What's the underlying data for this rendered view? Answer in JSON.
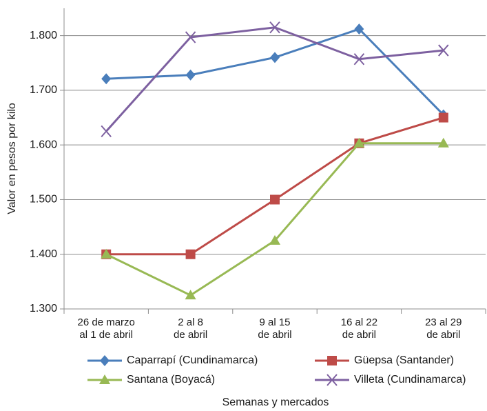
{
  "chart_data": {
    "type": "line",
    "y_label": "Valor en pesos por kilo",
    "x_label": "Semanas y mercados",
    "categories": [
      [
        "26 de marzo",
        "al 1 de abril"
      ],
      [
        "2 al 8",
        "de abril"
      ],
      [
        "9 al 15",
        "de abril"
      ],
      [
        "16 al 22",
        "de abril"
      ],
      [
        "23 al 29",
        "de abril"
      ]
    ],
    "series": [
      {
        "name": "Caparrapí (Cundinamarca)",
        "color": "#4a7ebb",
        "marker": "diamond",
        "values": [
          1721,
          1728,
          1760,
          1812,
          1655
        ]
      },
      {
        "name": "Güepsa (Santander)",
        "color": "#be4b48",
        "marker": "square",
        "values": [
          1400,
          1400,
          1500,
          1603,
          1650
        ]
      },
      {
        "name": "Santana (Boyacá)",
        "color": "#98b954",
        "marker": "triangle",
        "values": [
          1400,
          1325,
          1425,
          1603,
          1603
        ]
      },
      {
        "name": "Villeta (Cundinamarca)",
        "color": "#7d60a0",
        "marker": "x",
        "values": [
          1625,
          1797,
          1815,
          1757,
          1773
        ]
      }
    ],
    "ylim": [
      1300,
      1850
    ],
    "yticks": [
      {
        "value": 1300,
        "label": "1.300"
      },
      {
        "value": 1400,
        "label": "1.400"
      },
      {
        "value": 1500,
        "label": "1.500"
      },
      {
        "value": 1600,
        "label": "1.600"
      },
      {
        "value": 1700,
        "label": "1.700"
      },
      {
        "value": 1800,
        "label": "1.800"
      }
    ],
    "grid": true
  }
}
